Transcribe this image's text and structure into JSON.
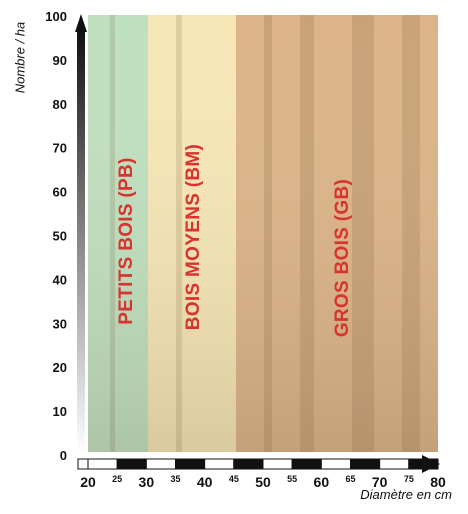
{
  "axes": {
    "y_label": "Nombre / ha",
    "x_label": "Diamètre en cm",
    "y_ticks": [
      "0",
      "10",
      "20",
      "30",
      "40",
      "50",
      "60",
      "70",
      "80",
      "90",
      "100"
    ],
    "x_major_ticks": [
      "20",
      "30",
      "40",
      "50",
      "60",
      "70",
      "80"
    ],
    "x_minor_ticks": [
      "25",
      "35",
      "45",
      "55",
      "65",
      "75"
    ]
  },
  "zones": [
    {
      "label": "PETITS BOIS (PB)",
      "x_from": 20,
      "x_to": 30,
      "color": "#bfe0bf"
    },
    {
      "label": "BOIS MOYENS (BM)",
      "x_from": 30,
      "x_to": 45,
      "color": "#f6e6b6"
    },
    {
      "label": "GROS BOIS (GB)",
      "x_from": 45,
      "x_to": 80,
      "color": "#dcb487"
    }
  ],
  "colors": {
    "label_red": "#d8332f",
    "axis_black": "#111111"
  }
}
